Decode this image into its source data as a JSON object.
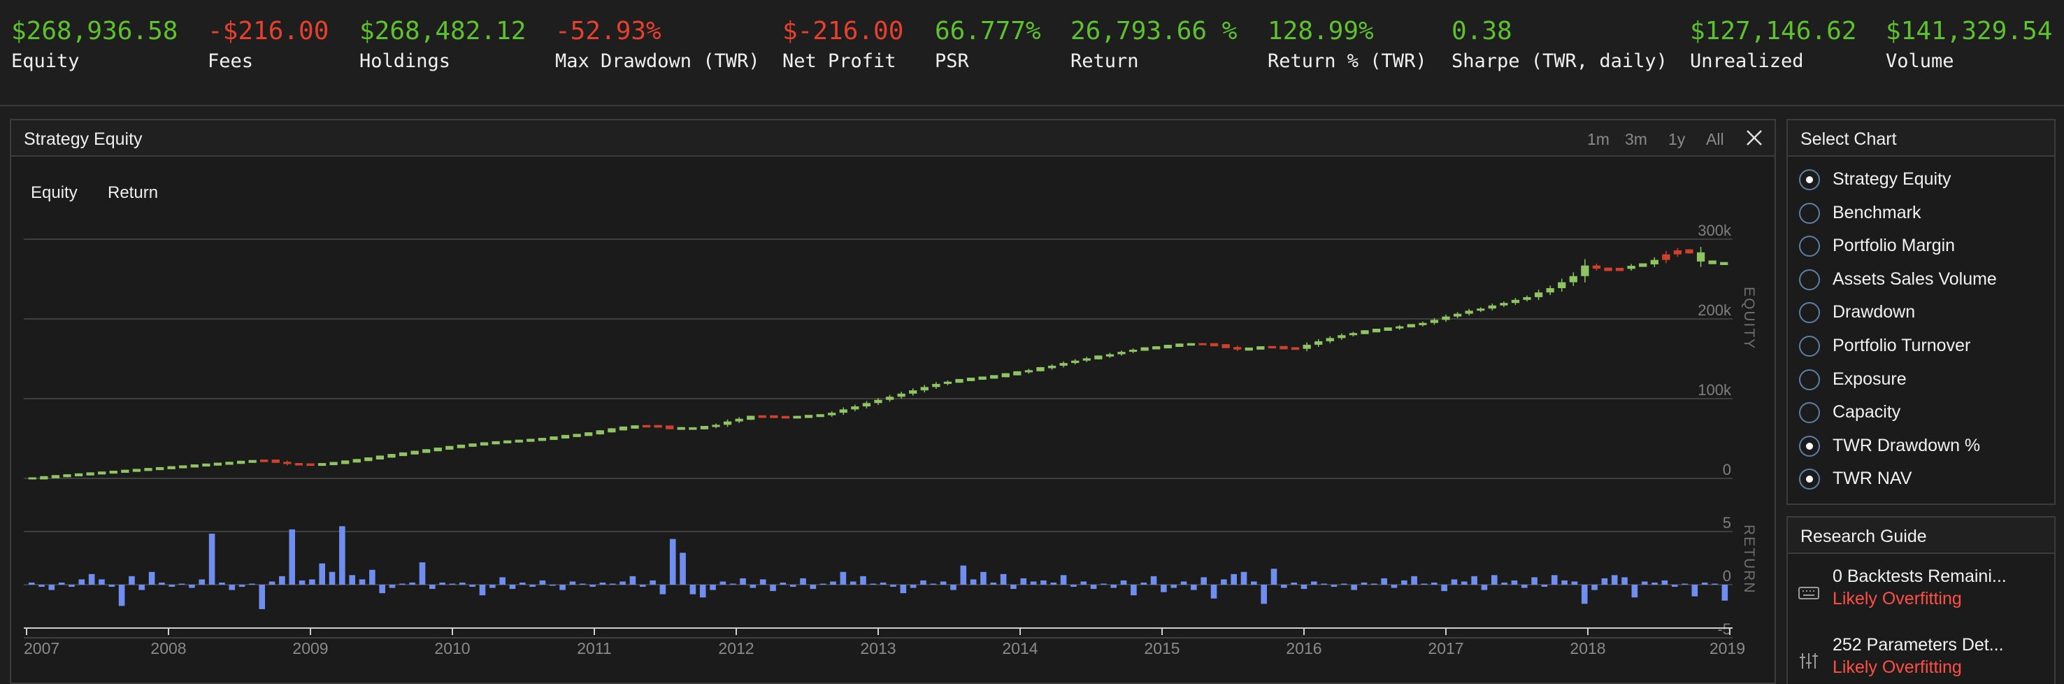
{
  "stats": [
    {
      "value": "$268,936.58",
      "label": "Equity",
      "tone": "pos",
      "x": 16
    },
    {
      "value": "-$216.00",
      "label": "Fees",
      "tone": "neg",
      "x": 297
    },
    {
      "value": "$268,482.12",
      "label": "Holdings",
      "tone": "pos",
      "x": 514
    },
    {
      "value": "-52.93%",
      "label": "Max Drawdown (TWR)",
      "tone": "neg",
      "x": 794
    },
    {
      "value": "$-216.00",
      "label": "Net Profit",
      "tone": "neg",
      "x": 1119
    },
    {
      "value": "66.777%",
      "label": "PSR",
      "tone": "pos",
      "x": 1337
    },
    {
      "value": "26,793.66 %",
      "label": "Return",
      "tone": "pos",
      "x": 1531
    },
    {
      "value": "128.99%",
      "label": "Return % (TWR)",
      "tone": "pos",
      "x": 1813
    },
    {
      "value": "0.38",
      "label": "Sharpe (TWR, daily)",
      "tone": "pos",
      "x": 2076
    },
    {
      "value": "$127,146.62",
      "label": "Unrealized",
      "tone": "pos",
      "x": 2417
    },
    {
      "value": "$141,329.54",
      "label": "Volume",
      "tone": "pos",
      "x": 2697
    }
  ],
  "chart_panel": {
    "title": "Strategy Equity",
    "ranges": [
      "1m",
      "3m",
      "1y",
      "All"
    ],
    "legend": [
      "Equity",
      "Return"
    ]
  },
  "chart_data": {
    "type": "candlestick+bar",
    "x_start": 2007.0,
    "x_end": 2019.0,
    "x_ticks": [
      "2007",
      "2008",
      "2009",
      "2010",
      "2011",
      "2012",
      "2013",
      "2014",
      "2015",
      "2016",
      "2017",
      "2018",
      "2019"
    ],
    "equity": {
      "axis_label": "EQUITY",
      "ylim": [
        0,
        300000
      ],
      "ticks": [
        {
          "v": 0,
          "t": "0"
        },
        {
          "v": 100000,
          "t": "100k"
        },
        {
          "v": 200000,
          "t": "200k"
        },
        {
          "v": 300000,
          "t": "300k"
        }
      ],
      "monthly_close": [
        0,
        1500,
        2800,
        3900,
        5000,
        6200,
        7300,
        8300,
        9500,
        10600,
        11700,
        12800,
        14000,
        15000,
        16200,
        17300,
        18400,
        19500,
        20800,
        21700,
        22300,
        20800,
        18000,
        17500,
        17000,
        17900,
        19300,
        21200,
        23000,
        25000,
        27300,
        29300,
        31300,
        33300,
        35300,
        37300,
        39300,
        41000,
        42500,
        44000,
        45300,
        46300,
        47200,
        48300,
        49500,
        51300,
        53200,
        54500,
        56500,
        59000,
        61500,
        63700,
        65200,
        65600,
        65000,
        63000,
        62200,
        62800,
        64500,
        67200,
        71400,
        74800,
        77200,
        77800,
        77000,
        76400,
        77100,
        78300,
        79200,
        82300,
        86500,
        90300,
        94500,
        98500,
        102400,
        106300,
        110400,
        114600,
        118500,
        121300,
        123300,
        125000,
        126400,
        128200,
        130600,
        133000,
        135700,
        138200,
        141300,
        144700,
        147700,
        150600,
        152800,
        155700,
        158700,
        161400,
        163100,
        164400,
        166200,
        167800,
        168300,
        168300,
        167000,
        164700,
        161600,
        162800,
        164400,
        164700,
        163200,
        162500,
        167600,
        172000,
        176000,
        179600,
        182300,
        184500,
        186400,
        188000,
        190700,
        192200,
        195000,
        198800,
        203000,
        206500,
        210300,
        213000,
        216900,
        220000,
        223900,
        227300,
        233200,
        238600,
        246000,
        253700,
        267000,
        263000,
        261400,
        262800,
        266600,
        268400,
        274000,
        281000,
        286000,
        283500,
        272000,
        270000,
        268900
      ],
      "down_months": [
        20,
        21,
        22,
        23,
        24,
        53,
        54,
        55,
        63,
        64,
        65,
        101,
        102,
        103,
        104,
        107,
        108,
        109,
        135,
        136,
        137,
        141,
        142,
        143
      ]
    },
    "returns": {
      "axis_label": "RETURN",
      "ylim": [
        -5,
        5
      ],
      "ticks": [
        {
          "v": 5,
          "t": "5"
        },
        {
          "v": 0,
          "t": "0"
        },
        {
          "v": -5,
          "t": "-5"
        }
      ],
      "monthly": [
        0.2,
        -0.2,
        -0.5,
        0.2,
        -0.2,
        0.5,
        1.0,
        0.5,
        -0.2,
        -2.0,
        0.8,
        -0.5,
        1.2,
        0.2,
        -0.2,
        0.1,
        -0.3,
        0.5,
        4.8,
        0.2,
        -0.5,
        -0.2,
        0.1,
        -2.3,
        0.3,
        0.8,
        5.2,
        0.4,
        0.5,
        2.0,
        1.2,
        5.5,
        0.9,
        0.5,
        1.4,
        -0.8,
        -0.3,
        0.1,
        0.2,
        2.1,
        -0.4,
        0.2,
        0.1,
        0.2,
        -0.2,
        -1.0,
        -0.3,
        0.7,
        -0.4,
        0.2,
        -0.2,
        0.4,
        -0.1,
        -0.5,
        0.3,
        0.1,
        -0.2,
        0.2,
        0.1,
        0.3,
        0.8,
        -0.2,
        0.4,
        -0.9,
        4.3,
        3.0,
        -0.9,
        -1.2,
        -0.5,
        0.3,
        0.1,
        0.6,
        -0.3,
        0.5,
        -0.6,
        0.2,
        -0.2,
        0.6,
        -0.4,
        0.1,
        0.3,
        1.2,
        0.3,
        0.8,
        0.1,
        0.2,
        -0.2,
        -0.8,
        -0.3,
        0.4,
        0.1,
        0.3,
        -0.5,
        1.8,
        0.5,
        1.2,
        0.2,
        1.0,
        -0.4,
        0.6,
        0.3,
        0.4,
        0.2,
        0.9,
        -0.2,
        0.3,
        -0.4,
        0.1,
        -0.3,
        0.4,
        -1.0,
        0.2,
        0.8,
        -0.7,
        -0.3,
        0.3,
        -0.5,
        0.7,
        -1.3,
        0.5,
        1.0,
        1.2,
        0.3,
        -1.8,
        1.5,
        -0.3,
        0.2,
        -0.4,
        0.3,
        0.1,
        -0.2,
        0.1,
        -0.5,
        0.2,
        0.1,
        0.6,
        -0.3,
        0.4,
        0.8,
        0.1,
        0.2,
        -0.6,
        0.5,
        0.3,
        0.8,
        -0.5,
        0.9,
        0.2,
        0.4,
        -0.3,
        0.7,
        -0.2,
        0.9,
        0.4,
        0.3,
        -1.8,
        -0.5,
        0.6,
        0.9,
        0.7,
        -1.2,
        0.3,
        0.2,
        0.4,
        -0.2,
        0.1,
        -1.1,
        0.2,
        0.1,
        -1.5
      ]
    }
  },
  "select_chart": {
    "title": "Select Chart",
    "options": [
      {
        "label": "Strategy Equity",
        "checked": true
      },
      {
        "label": "Benchmark",
        "checked": false
      },
      {
        "label": "Portfolio Margin",
        "checked": false
      },
      {
        "label": "Assets Sales Volume",
        "checked": false
      },
      {
        "label": "Drawdown",
        "checked": false
      },
      {
        "label": "Portfolio Turnover",
        "checked": false
      },
      {
        "label": "Exposure",
        "checked": false
      },
      {
        "label": "Capacity",
        "checked": false
      },
      {
        "label": "TWR Drawdown %",
        "checked": true
      },
      {
        "label": "TWR NAV",
        "checked": true
      }
    ]
  },
  "research_guide": {
    "title": "Research Guide",
    "items": [
      {
        "title": "0 Backtests Remaini...",
        "subtitle": "Likely Overfitting",
        "icon": "keyboard-icon"
      },
      {
        "title": "252 Parameters Det...",
        "subtitle": "Likely Overfitting",
        "icon": "sliders-icon"
      }
    ]
  },
  "colors": {
    "up": "#8fc463",
    "down": "#d0402c",
    "bar": "#6f8ef0",
    "positive": "#5ec22f",
    "negative": "#e8402f"
  }
}
